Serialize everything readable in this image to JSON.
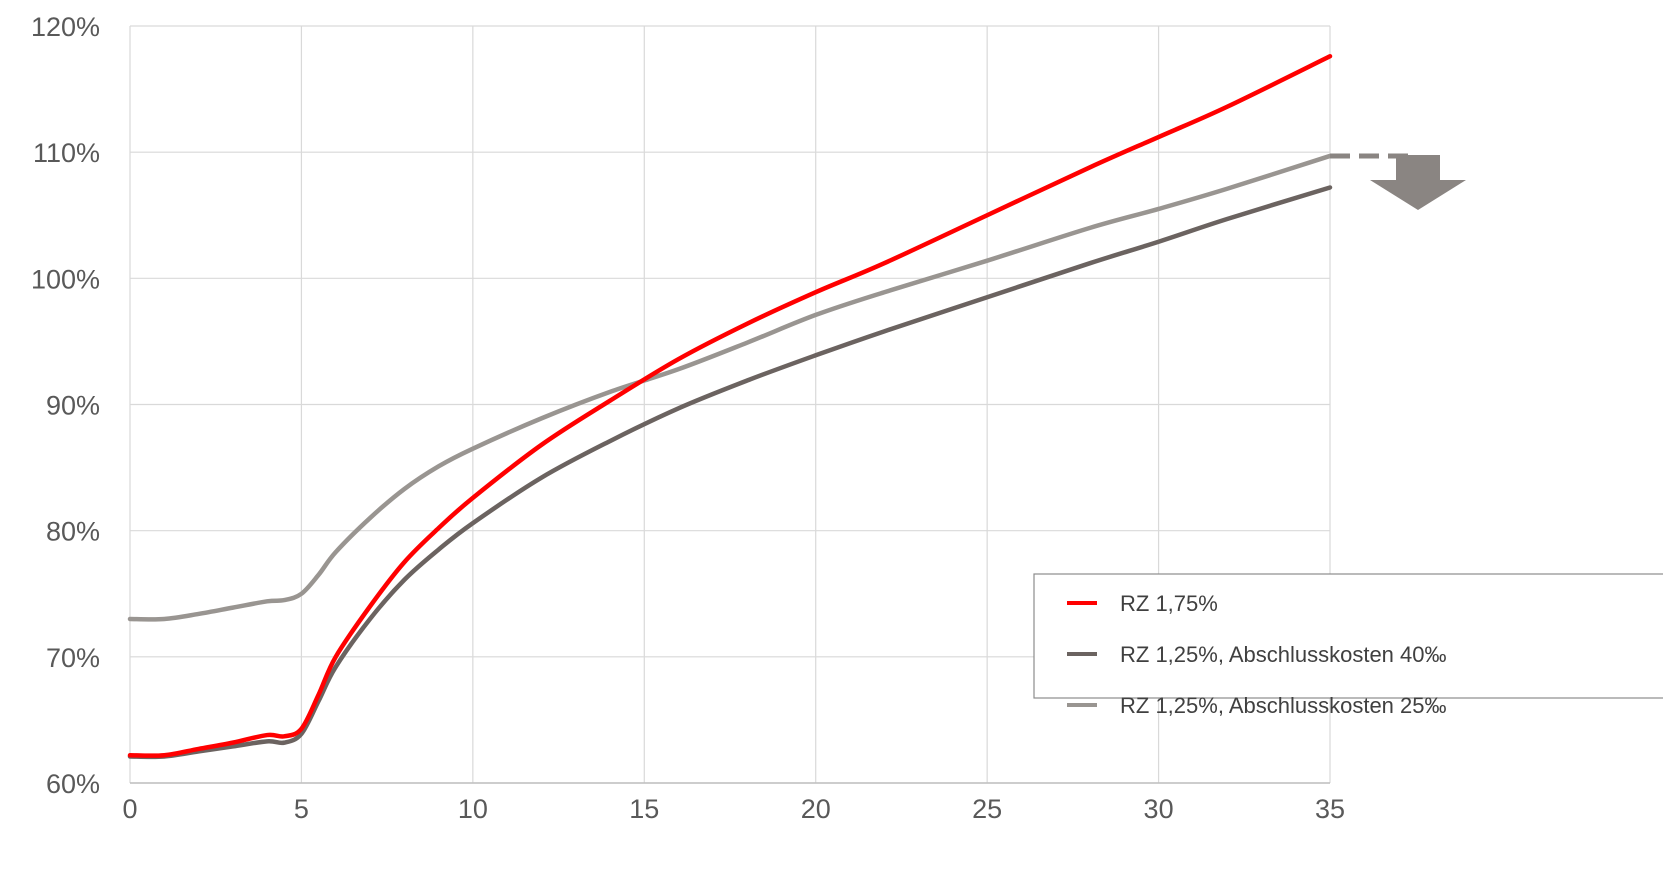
{
  "chart_data": {
    "type": "line",
    "title": "",
    "xlabel": "",
    "ylabel": "",
    "xlim": [
      0,
      35
    ],
    "ylim": [
      60,
      120
    ],
    "x_ticks": [
      0,
      5,
      10,
      15,
      20,
      25,
      30,
      35
    ],
    "x_tick_labels": [
      "0",
      "5",
      "10",
      "15",
      "20",
      "25",
      "30",
      "35"
    ],
    "y_ticks": [
      60,
      70,
      80,
      90,
      100,
      110,
      120
    ],
    "y_tick_labels": [
      "60%",
      "70%",
      "80%",
      "90%",
      "100%",
      "110%",
      "120%"
    ],
    "grid": true,
    "legend_position": "bottom-right",
    "series": [
      {
        "name": "RZ 1,75%",
        "color": "#ff0000",
        "x": [
          0,
          1,
          2,
          3,
          4,
          4.5,
          5,
          5.5,
          6,
          7,
          8,
          9,
          10,
          12,
          14,
          16,
          18,
          20,
          22,
          25,
          28,
          30,
          32,
          35
        ],
        "y": [
          62.2,
          62.2,
          62.7,
          63.2,
          63.8,
          63.7,
          64.3,
          67,
          70,
          74,
          77.5,
          80.2,
          82.6,
          86.8,
          90.3,
          93.6,
          96.4,
          98.9,
          101.2,
          105.0,
          108.8,
          111.2,
          113.6,
          117.6
        ]
      },
      {
        "name": "RZ 1,25%, Abschlusskosten 40‰",
        "color": "#6b6360",
        "x": [
          0,
          1,
          2,
          3,
          4,
          4.5,
          5,
          5.5,
          6,
          7,
          8,
          9,
          10,
          12,
          14,
          16,
          18,
          20,
          22,
          25,
          28,
          30,
          32,
          35
        ],
        "y": [
          62.1,
          62.1,
          62.5,
          62.9,
          63.3,
          63.2,
          63.9,
          66.5,
          69.2,
          73,
          76.1,
          78.5,
          80.6,
          84.2,
          87.1,
          89.7,
          91.9,
          93.9,
          95.8,
          98.5,
          101.2,
          102.9,
          104.7,
          107.2
        ]
      },
      {
        "name": "RZ 1,25%, Abschlusskosten 25‰",
        "color": "#999591",
        "x": [
          0,
          1,
          2,
          3,
          4,
          4.5,
          5,
          5.5,
          6,
          7,
          8,
          9,
          10,
          12,
          14,
          16,
          18,
          20,
          22,
          25,
          28,
          30,
          32,
          35
        ],
        "y": [
          73,
          73,
          73.4,
          73.9,
          74.4,
          74.5,
          75,
          76.5,
          78.3,
          81,
          83.3,
          85.1,
          86.5,
          88.9,
          91,
          92.8,
          94.9,
          97.1,
          98.9,
          101.4,
          104,
          105.5,
          107.1,
          109.7
        ]
      }
    ],
    "annotations": [
      {
        "kind": "dashed-extension-with-down-arrow",
        "color": "#8a8582",
        "x_start": 35,
        "y": 109.7
      }
    ]
  }
}
